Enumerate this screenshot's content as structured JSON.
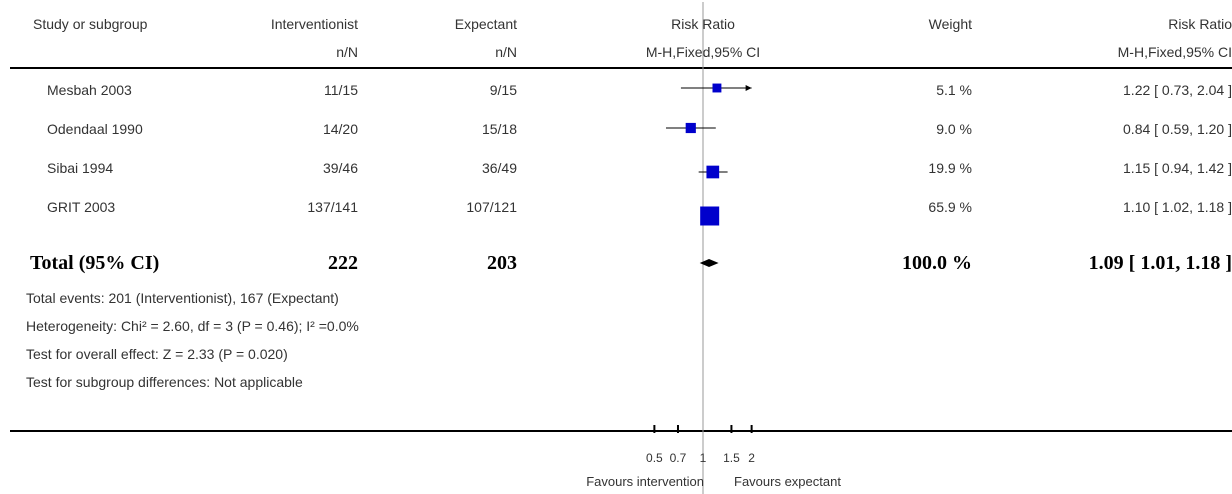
{
  "header": {
    "study_label": "Study or subgroup",
    "group1_label": "Interventionist",
    "group2_label": "Expectant",
    "group1_sub": "n/N",
    "group2_sub": "n/N",
    "plot_label": "Risk Ratio",
    "plot_sub": "M-H,Fixed,95% CI",
    "weight_label": "Weight",
    "ratio_label": "Risk Ratio",
    "ratio_sub": "M-H,Fixed,95% CI"
  },
  "rows": [
    {
      "study": "Mesbah 2003",
      "g1": "11/15",
      "g2": "9/15",
      "weight": "5.1 %",
      "ci": "1.22 [ 0.73, 2.04 ]"
    },
    {
      "study": "Odendaal 1990",
      "g1": "14/20",
      "g2": "15/18",
      "weight": "9.0 %",
      "ci": "0.84 [ 0.59, 1.20 ]"
    },
    {
      "study": "Sibai 1994",
      "g1": "39/46",
      "g2": "36/49",
      "weight": "19.9 %",
      "ci": "1.15 [ 0.94, 1.42 ]"
    },
    {
      "study": "GRIT 2003",
      "g1": "137/141",
      "g2": "107/121",
      "weight": "65.9 %",
      "ci": "1.10 [ 1.02, 1.18 ]"
    }
  ],
  "total": {
    "label": "Total (95% CI)",
    "g1": "222",
    "g2": "203",
    "weight": "100.0 %",
    "ci": "1.09 [ 1.01, 1.18 ]"
  },
  "notes": [
    "Total events: 201 (Interventionist), 167 (Expectant)",
    "Heterogeneity: Chi² = 2.60, df = 3 (P = 0.46); I² =0.0%",
    "Test for overall effect: Z = 2.33 (P = 0.020)",
    "Test for subgroup differences: Not applicable"
  ],
  "axis": {
    "favours_left": "Favours intervention",
    "favours_right": "Favours expectant"
  },
  "colors": {
    "marker": "#0000cc",
    "line": "#000000",
    "refline": "#999999"
  },
  "chart_data": {
    "type": "forest",
    "scale": "log",
    "xlim": [
      0.5,
      2
    ],
    "ticks": [
      0.5,
      0.7,
      1,
      1.5,
      2
    ],
    "tick_labels": [
      "0.5",
      "0.7",
      "1",
      "1.5",
      "2"
    ],
    "reference": 1,
    "series": [
      {
        "study": "Mesbah 2003",
        "rr": 1.22,
        "lo": 0.73,
        "hi": 2.04,
        "weight": 5.1
      },
      {
        "study": "Odendaal 1990",
        "rr": 0.84,
        "lo": 0.59,
        "hi": 1.2,
        "weight": 9.0
      },
      {
        "study": "Sibai 1994",
        "rr": 1.15,
        "lo": 0.94,
        "hi": 1.42,
        "weight": 19.9
      },
      {
        "study": "GRIT 2003",
        "rr": 1.1,
        "lo": 1.02,
        "hi": 1.18,
        "weight": 65.9
      }
    ],
    "pooled": {
      "rr": 1.09,
      "lo": 1.01,
      "hi": 1.18
    }
  }
}
